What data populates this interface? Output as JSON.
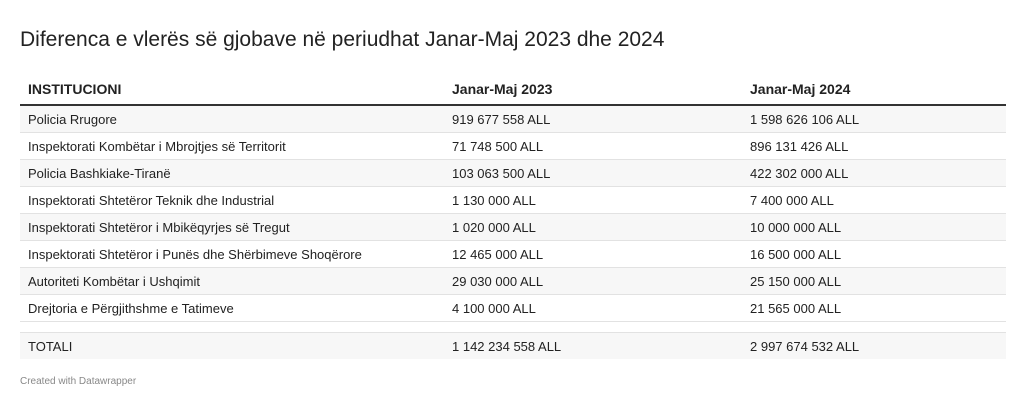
{
  "title": "Diferenca e vlerës së gjobave në periudhat Janar-Maj 2023 dhe 2024",
  "chart_data": {
    "type": "table",
    "title": "Diferenca e vlerës së gjobave në periudhat Janar-Maj 2023 dhe 2024",
    "columns": [
      "INSTITUCIONI",
      "Janar-Maj 2023",
      "Janar-Maj 2024"
    ],
    "rows": [
      [
        "Policia Rrugore",
        "919 677 558 ALL",
        "1 598 626 106 ALL"
      ],
      [
        "Inspektorati Kombëtar i Mbrojtjes së Territorit",
        "71 748 500 ALL",
        "896 131 426 ALL"
      ],
      [
        "Policia Bashkiake-Tiranë",
        "103 063 500 ALL",
        "422 302 000 ALL"
      ],
      [
        "Inspektorati Shtetëror Teknik dhe Industrial",
        "1 130 000 ALL",
        "7 400 000 ALL"
      ],
      [
        "Inspektorati Shtetëror i Mbikëqyrjes së Tregut",
        "1 020 000 ALL",
        "10 000 000 ALL"
      ],
      [
        "Inspektorati Shtetëror i Punës dhe Shërbimeve Shoqërore",
        "12 465 000 ALL",
        "16 500 000 ALL"
      ],
      [
        "Autoriteti Kombëtar i Ushqimit",
        "29 030 000 ALL",
        "25 150 000 ALL"
      ],
      [
        "Drejtoria e Përgjithshme e Tatimeve",
        "4 100 000 ALL",
        "21 565 000 ALL"
      ]
    ],
    "total": [
      "TOTALI",
      "1 142 234 558 ALL",
      "2 997 674 532 ALL"
    ]
  },
  "footer": "Created with Datawrapper",
  "colors": {
    "stripe": "#f7f7f7",
    "header_rule": "#333333",
    "row_rule": "#e2e2e2",
    "footer_text": "#888888"
  }
}
